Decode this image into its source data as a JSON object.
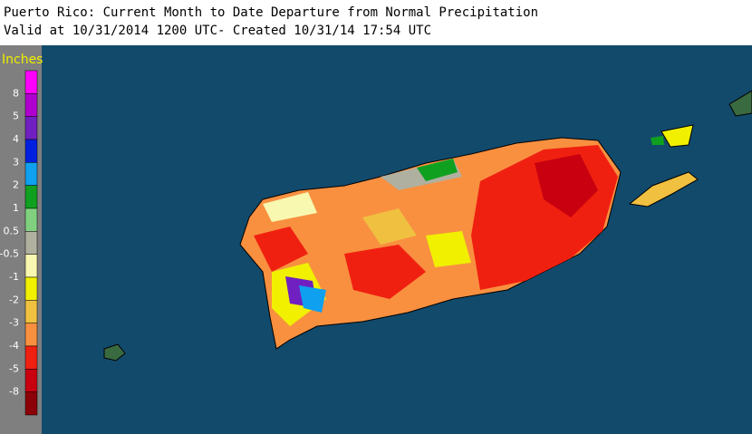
{
  "header": {
    "title": "Puerto Rico: Current Month to Date Departure from Normal Precipitation",
    "subtitle": "Valid at 10/31/2014 1200 UTC- Created 10/31/14 17:54 UTC"
  },
  "legend": {
    "title": "Inches",
    "labels": [
      "8",
      "5",
      "4",
      "3",
      "2",
      "1",
      "0.5",
      "-0.5",
      "-1",
      "-2",
      "-3",
      "-4",
      "-5",
      "-8"
    ],
    "colors": [
      "#ff00ff",
      "#b000d0",
      "#7020c0",
      "#0020e0",
      "#10a0f0",
      "#10a020",
      "#80d080",
      "#b0b0a0",
      "#f8f8b0",
      "#f0f000",
      "#f0c040",
      "#f89040",
      "#f02010",
      "#c80010",
      "#8c0008"
    ]
  }
}
